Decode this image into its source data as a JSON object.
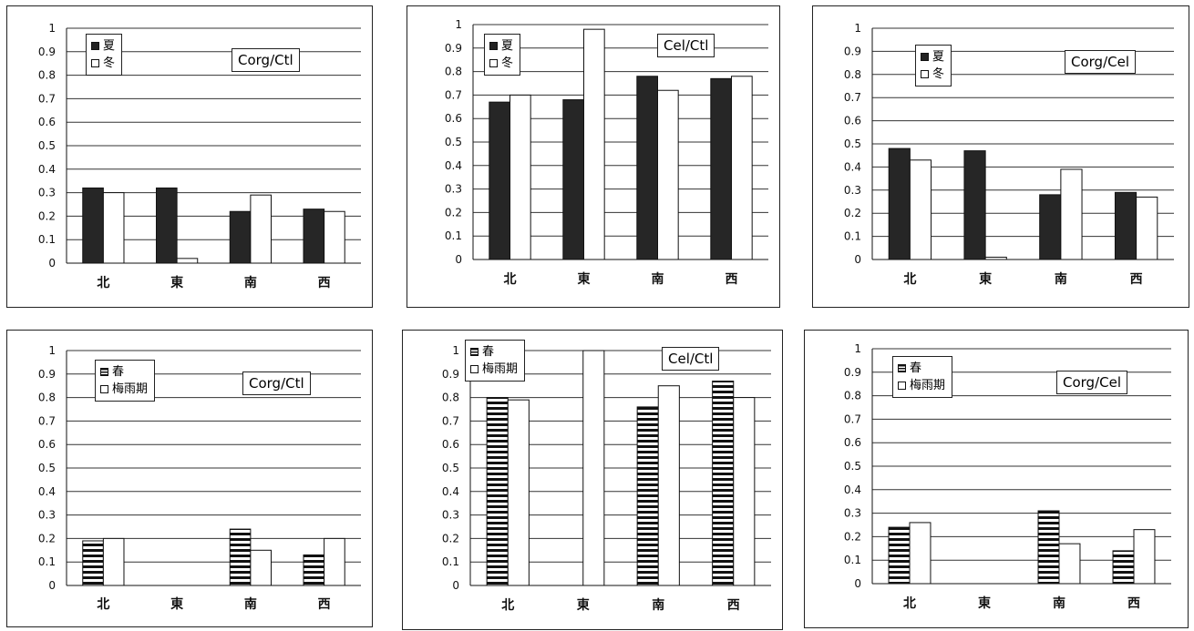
{
  "colors": {
    "dark": "#262626",
    "white": "#ffffff",
    "stripe": "#111111",
    "grid": "#333333"
  },
  "chart_data": [
    {
      "type": "bar",
      "title": "Corg/Ctl",
      "xlabel": "",
      "ylabel": "",
      "ylim": [
        0,
        1
      ],
      "ytick_step": 0.1,
      "grid": true,
      "legend_placement": "top-left",
      "categories": [
        "北",
        "東",
        "南",
        "西"
      ],
      "series": [
        {
          "name": "夏",
          "style": "dark",
          "values": [
            0.32,
            0.32,
            0.22,
            0.23
          ]
        },
        {
          "name": "冬",
          "style": "white",
          "values": [
            0.3,
            0.02,
            0.29,
            0.22
          ]
        }
      ]
    },
    {
      "type": "bar",
      "title": "Cel/Ctl",
      "xlabel": "",
      "ylabel": "",
      "ylim": [
        0,
        1
      ],
      "ytick_step": 0.1,
      "grid": true,
      "legend_placement": "top-left",
      "categories": [
        "北",
        "東",
        "南",
        "西"
      ],
      "series": [
        {
          "name": "夏",
          "style": "dark",
          "values": [
            0.67,
            0.68,
            0.78,
            0.77
          ]
        },
        {
          "name": "冬",
          "style": "white",
          "values": [
            0.7,
            0.98,
            0.72,
            0.78
          ]
        }
      ]
    },
    {
      "type": "bar",
      "title": "Corg/Cel",
      "xlabel": "",
      "ylabel": "",
      "ylim": [
        0,
        1
      ],
      "ytick_step": 0.1,
      "grid": true,
      "legend_placement": "top-left",
      "categories": [
        "北",
        "東",
        "南",
        "西"
      ],
      "series": [
        {
          "name": "夏",
          "style": "dark",
          "values": [
            0.48,
            0.47,
            0.28,
            0.29
          ]
        },
        {
          "name": "冬",
          "style": "white",
          "values": [
            0.43,
            0.01,
            0.39,
            0.27
          ]
        }
      ]
    },
    {
      "type": "bar",
      "title": "Corg/Ctl",
      "xlabel": "",
      "ylabel": "",
      "ylim": [
        0,
        1
      ],
      "ytick_step": 0.1,
      "grid": true,
      "legend_placement": "top-left",
      "categories": [
        "北",
        "東",
        "南",
        "西"
      ],
      "series": [
        {
          "name": "春",
          "style": "striped",
          "values": [
            0.19,
            null,
            0.24,
            0.13
          ]
        },
        {
          "name": "梅雨期",
          "style": "white",
          "values": [
            0.2,
            null,
            0.15,
            0.2
          ]
        }
      ]
    },
    {
      "type": "bar",
      "title": "Cel/Ctl",
      "xlabel": "",
      "ylabel": "",
      "ylim": [
        0,
        1
      ],
      "ytick_step": 0.1,
      "grid": true,
      "legend_placement": "top-left",
      "categories": [
        "北",
        "東",
        "南",
        "西"
      ],
      "series": [
        {
          "name": "春",
          "style": "striped",
          "values": [
            0.8,
            null,
            0.76,
            0.87
          ]
        },
        {
          "name": "梅雨期",
          "style": "white",
          "values": [
            0.79,
            1.0,
            0.85,
            0.8
          ]
        }
      ]
    },
    {
      "type": "bar",
      "title": "Corg/Cel",
      "xlabel": "",
      "ylabel": "",
      "ylim": [
        0,
        1
      ],
      "ytick_step": 0.1,
      "grid": true,
      "legend_placement": "top-left",
      "categories": [
        "北",
        "東",
        "南",
        "西"
      ],
      "series": [
        {
          "name": "春",
          "style": "striped",
          "values": [
            0.24,
            null,
            0.31,
            0.14
          ]
        },
        {
          "name": "梅雨期",
          "style": "white",
          "values": [
            0.26,
            null,
            0.17,
            0.23
          ]
        }
      ]
    }
  ]
}
